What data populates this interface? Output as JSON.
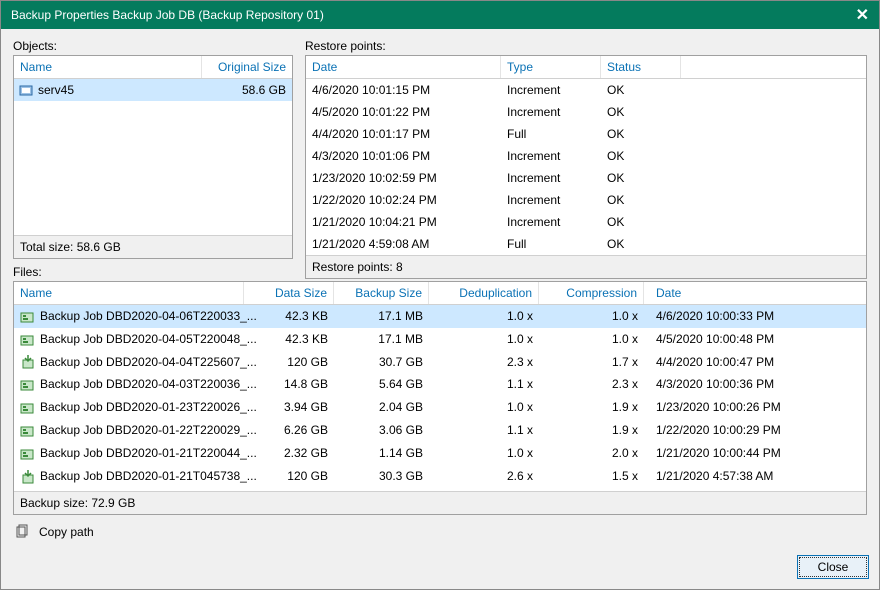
{
  "window": {
    "title": "Backup Properties Backup Job DB (Backup Repository 01)",
    "close_label": "✕"
  },
  "objects": {
    "label": "Objects:",
    "columns": {
      "name": "Name",
      "original_size": "Original Size"
    },
    "rows": [
      {
        "name": "serv45",
        "size": "58.6 GB",
        "selected": true,
        "icon": "vm"
      }
    ],
    "footer": "Total size: 58.6 GB"
  },
  "restore_points": {
    "label": "Restore points:",
    "columns": {
      "date": "Date",
      "type": "Type",
      "status": "Status"
    },
    "rows": [
      {
        "date": "4/6/2020 10:01:15 PM",
        "type": "Increment",
        "status": "OK"
      },
      {
        "date": "4/5/2020 10:01:22 PM",
        "type": "Increment",
        "status": "OK"
      },
      {
        "date": "4/4/2020 10:01:17 PM",
        "type": "Full",
        "status": "OK"
      },
      {
        "date": "4/3/2020 10:01:06 PM",
        "type": "Increment",
        "status": "OK"
      },
      {
        "date": "1/23/2020 10:02:59 PM",
        "type": "Increment",
        "status": "OK"
      },
      {
        "date": "1/22/2020 10:02:24 PM",
        "type": "Increment",
        "status": "OK"
      },
      {
        "date": "1/21/2020 10:04:21 PM",
        "type": "Increment",
        "status": "OK"
      },
      {
        "date": "1/21/2020 4:59:08 AM",
        "type": "Full",
        "status": "OK"
      }
    ],
    "footer": "Restore points: 8"
  },
  "files": {
    "label": "Files:",
    "columns": {
      "name": "Name",
      "data_size": "Data Size",
      "backup_size": "Backup Size",
      "dedup": "Deduplication",
      "compression": "Compression",
      "date": "Date"
    },
    "rows": [
      {
        "name": "Backup Job DBD2020-04-06T220033_...",
        "data_size": "42.3 KB",
        "backup_size": "17.1 MB",
        "dedup": "1.0 x",
        "compression": "1.0 x",
        "date": "4/6/2020 10:00:33 PM",
        "selected": true,
        "icon": "inc"
      },
      {
        "name": "Backup Job DBD2020-04-05T220048_...",
        "data_size": "42.3 KB",
        "backup_size": "17.1 MB",
        "dedup": "1.0 x",
        "compression": "1.0 x",
        "date": "4/5/2020 10:00:48 PM",
        "icon": "inc"
      },
      {
        "name": "Backup Job DBD2020-04-04T225607_...",
        "data_size": "120 GB",
        "backup_size": "30.7 GB",
        "dedup": "2.3 x",
        "compression": "1.7 x",
        "date": "4/4/2020 10:00:47 PM",
        "icon": "full"
      },
      {
        "name": "Backup Job DBD2020-04-03T220036_...",
        "data_size": "14.8 GB",
        "backup_size": "5.64 GB",
        "dedup": "1.1 x",
        "compression": "2.3 x",
        "date": "4/3/2020 10:00:36 PM",
        "icon": "inc"
      },
      {
        "name": "Backup Job DBD2020-01-23T220026_...",
        "data_size": "3.94 GB",
        "backup_size": "2.04 GB",
        "dedup": "1.0 x",
        "compression": "1.9 x",
        "date": "1/23/2020 10:00:26 PM",
        "icon": "inc"
      },
      {
        "name": "Backup Job DBD2020-01-22T220029_...",
        "data_size": "6.26 GB",
        "backup_size": "3.06 GB",
        "dedup": "1.1 x",
        "compression": "1.9 x",
        "date": "1/22/2020 10:00:29 PM",
        "icon": "inc"
      },
      {
        "name": "Backup Job DBD2020-01-21T220044_...",
        "data_size": "2.32 GB",
        "backup_size": "1.14 GB",
        "dedup": "1.0 x",
        "compression": "2.0 x",
        "date": "1/21/2020 10:00:44 PM",
        "icon": "inc"
      },
      {
        "name": "Backup Job DBD2020-01-21T045738_...",
        "data_size": "120 GB",
        "backup_size": "30.3 GB",
        "dedup": "2.6 x",
        "compression": "1.5 x",
        "date": "1/21/2020 4:57:38 AM",
        "icon": "full"
      }
    ],
    "footer": "Backup size: 72.9 GB"
  },
  "actions": {
    "copy_path": "Copy path",
    "close": "Close"
  },
  "colors": {
    "titlebar": "#047b5d",
    "header_text": "#0b72b5",
    "selection": "#cde8ff",
    "border": "#a0a0a0"
  }
}
